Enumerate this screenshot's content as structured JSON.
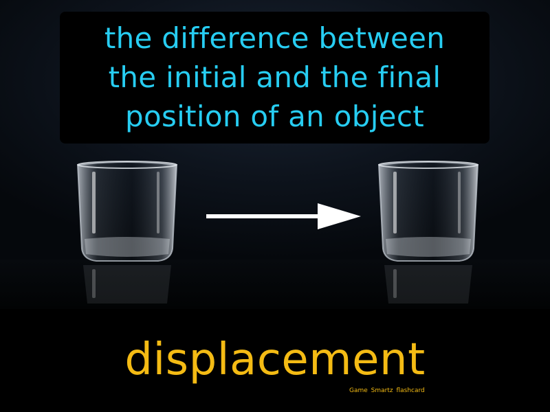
{
  "card": {
    "definition_lines": [
      "the difference between",
      "the initial and the final",
      "position of an object"
    ],
    "term": "displacement",
    "brand": "Game Smartz flashcard"
  },
  "colors": {
    "definition_text": "#27cdf2",
    "term_text": "#f4bb14",
    "background": "#000000",
    "arrow": "#ffffff"
  },
  "icons": {
    "glass_left": "glass-icon",
    "arrow": "arrow-right-icon",
    "glass_right": "glass-icon"
  }
}
